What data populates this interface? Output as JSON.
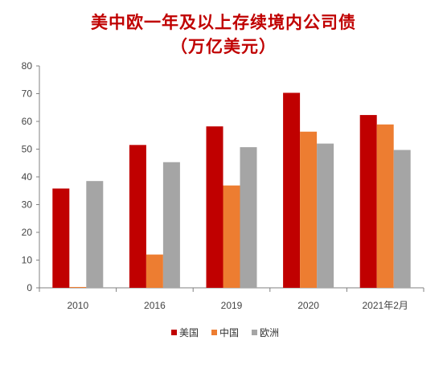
{
  "chart_data": {
    "type": "bar",
    "title": "美中欧一年及以上存续境内公司债",
    "subtitle": "（万亿美元）",
    "categories": [
      "2010",
      "2016",
      "2019",
      "2020",
      "2021年2月"
    ],
    "series": [
      {
        "name": "美国",
        "color": "#c00000",
        "values": [
          35.8,
          51.5,
          58.2,
          70.3,
          62.3
        ]
      },
      {
        "name": "中国",
        "color": "#ed7d31",
        "values": [
          0.3,
          12.0,
          36.9,
          56.3,
          58.9
        ]
      },
      {
        "name": "欧洲",
        "color": "#a5a5a5",
        "values": [
          38.5,
          45.3,
          50.7,
          52.0,
          49.7
        ]
      }
    ],
    "ylim": [
      0,
      80
    ],
    "yticks": [
      0,
      10,
      20,
      30,
      40,
      50,
      60,
      70,
      80
    ],
    "grid": false,
    "legend_position": "bottom"
  }
}
